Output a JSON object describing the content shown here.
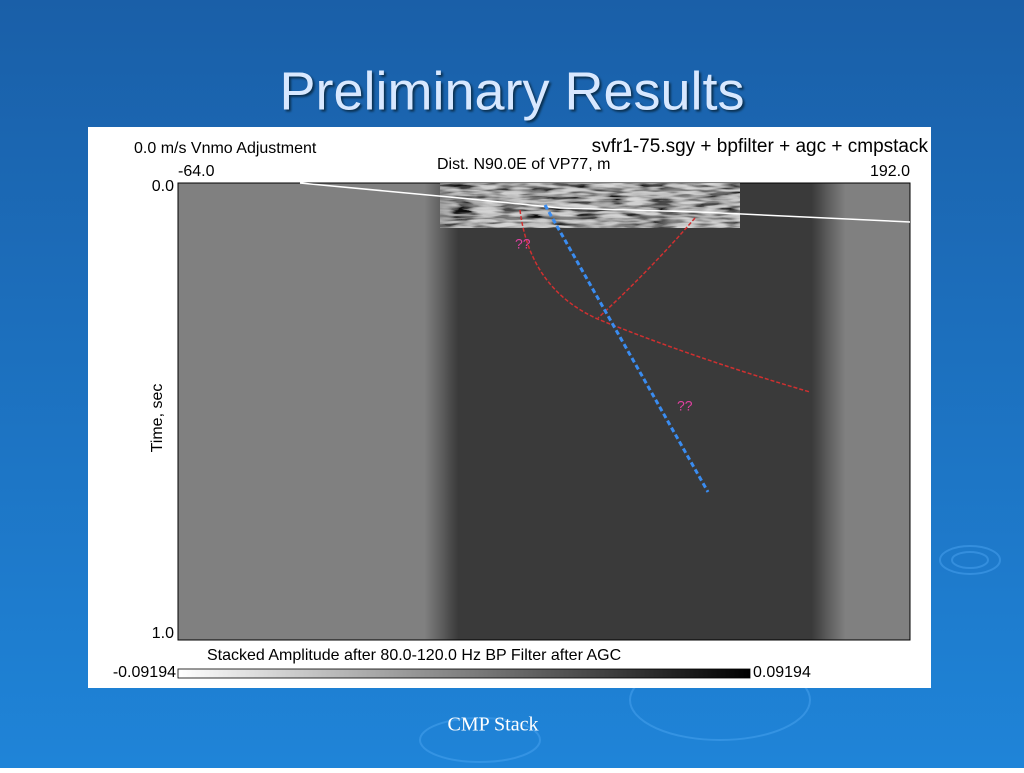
{
  "slide": {
    "title": "Preliminary Results",
    "caption": "CMP Stack"
  },
  "figure": {
    "top_left_label": "0.0 m/s Vnmo Adjustment",
    "title": "svfr1-75.sgy + bpfilter + agc + cmpstack",
    "x_axis_label": "Dist. N90.0E of VP77, m",
    "x_axis_min": "-64.0",
    "x_axis_max": "192.0",
    "y_axis_label": "Time, sec",
    "y_axis_min": "0.0",
    "y_axis_max": "1.0",
    "annotations": [
      "??",
      "??"
    ],
    "colorbar_title": "Stacked Amplitude after 80.0-120.0 Hz BP Filter after AGC",
    "colorbar_min": "-0.09194",
    "colorbar_max": "0.09194"
  }
}
